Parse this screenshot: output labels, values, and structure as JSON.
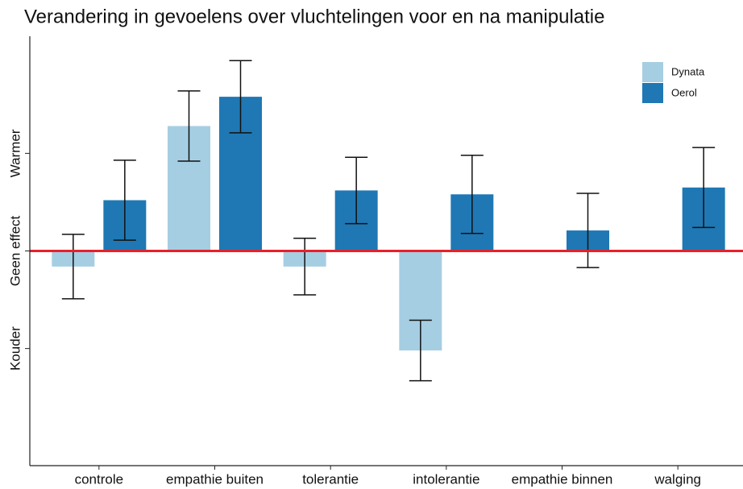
{
  "chart_data": {
    "type": "bar",
    "title": "Verandering in gevoelens over vluchtelingen voor en na manipulatie",
    "categories": [
      "controle",
      "empathie buiten",
      "tolerantie",
      "intolerantie",
      "empathie binnen",
      "walging"
    ],
    "series": [
      {
        "name": "Dynata",
        "color": "#a6cee3",
        "values": [
          -0.16,
          1.28,
          -0.16,
          -1.02,
          null,
          null
        ],
        "errors": [
          0.33,
          0.36,
          0.29,
          0.31,
          null,
          null
        ]
      },
      {
        "name": "Oerol",
        "color": "#1f78b4",
        "values": [
          0.52,
          1.58,
          0.62,
          0.58,
          0.21,
          0.65
        ],
        "errors": [
          0.41,
          0.37,
          0.34,
          0.4,
          0.38,
          0.41
        ]
      }
    ],
    "ylim": [
      -2.2,
      2.2
    ],
    "yticks": [
      {
        "value": -1,
        "label": "Kouder"
      },
      {
        "value": 0,
        "label": "Geen effect"
      },
      {
        "value": 1,
        "label": "Warmer"
      }
    ],
    "reference_line": {
      "y": 0,
      "color": "#e8202a"
    },
    "legend": "top-right"
  }
}
